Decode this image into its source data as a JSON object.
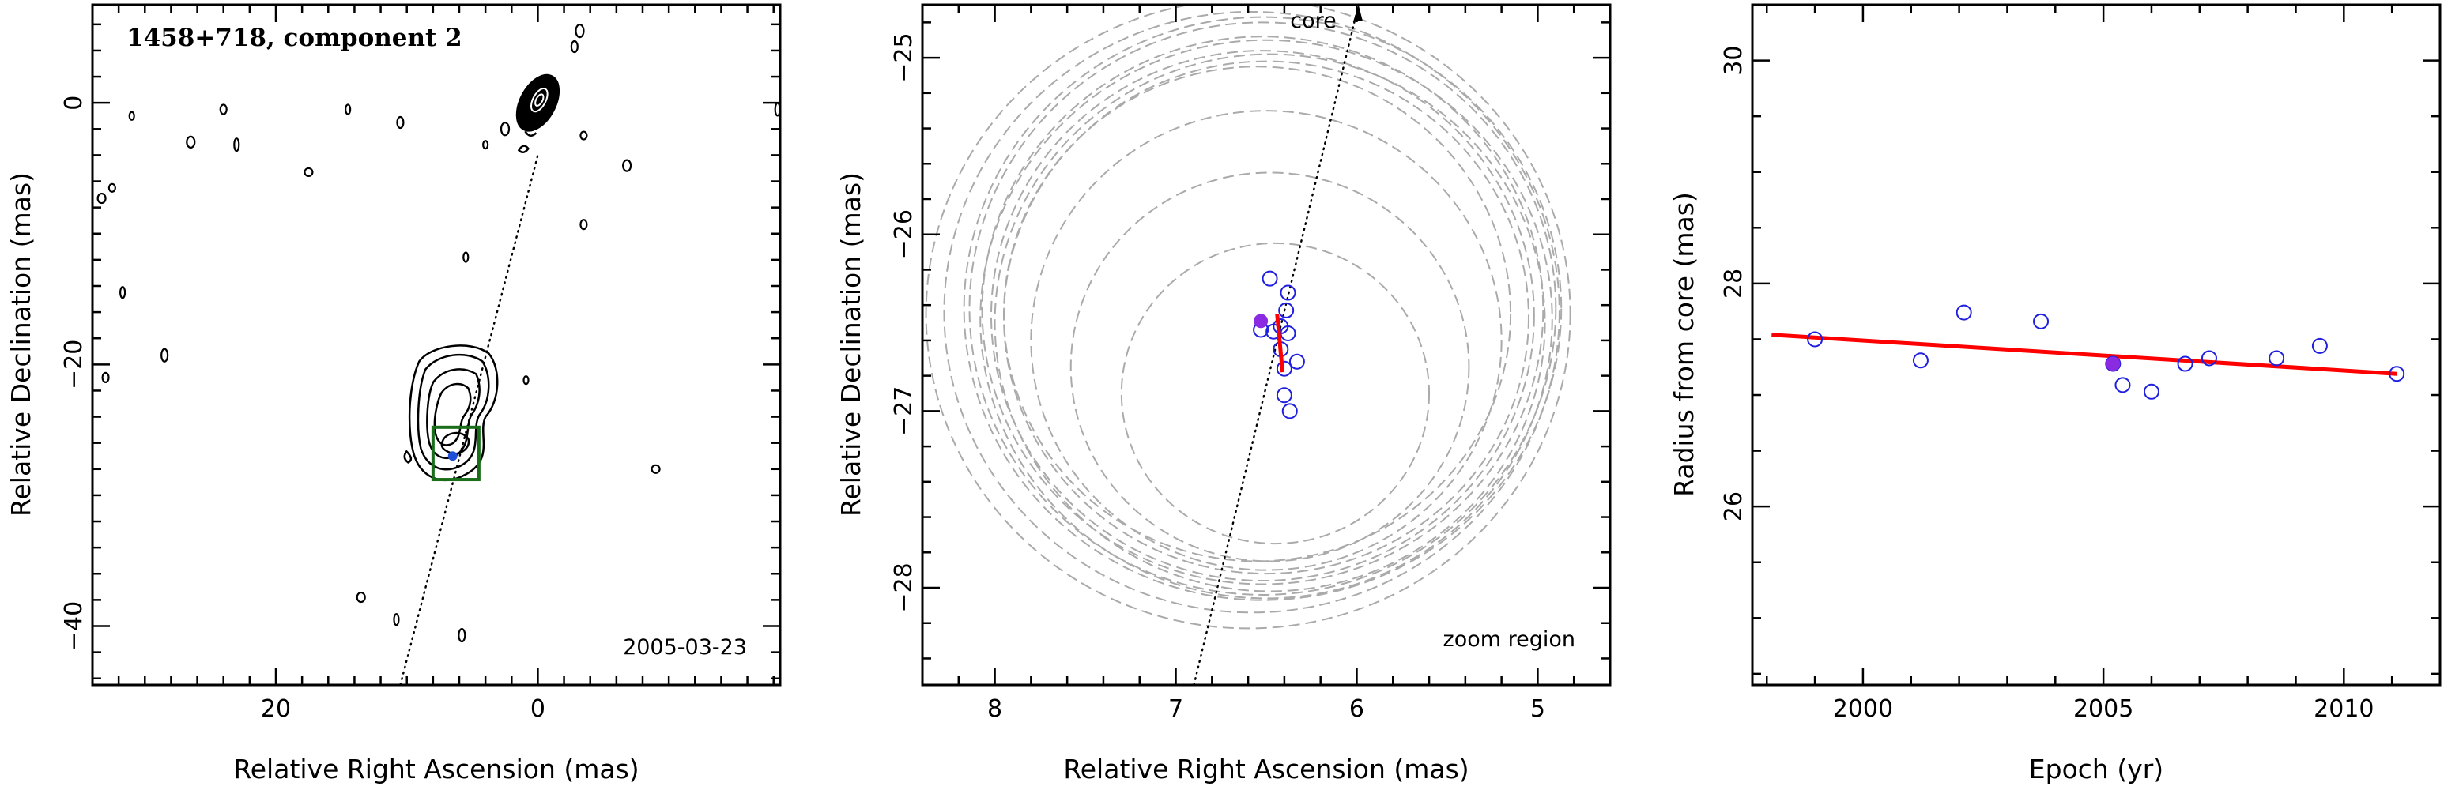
{
  "chart_data": [
    {
      "type": "contour-map",
      "title": "1458+718, component 2",
      "xlabel": "Relative Right Ascension (mas)",
      "ylabel": "Relative Declination (mas)",
      "xlim": [
        34,
        -18.5
      ],
      "ylim": [
        -44.5,
        7.5
      ],
      "xticks": [
        20,
        0
      ],
      "yticks": [
        0,
        -20,
        -40
      ],
      "date_label": "2005-03-23",
      "jet_line": {
        "from": [
          10.5,
          -44.5
        ],
        "to": [
          0,
          -4
        ]
      },
      "zoom_box": {
        "x": [
          4.5,
          8.0
        ],
        "y": [
          -24.8,
          -28.8
        ]
      },
      "component": {
        "ra": 6.5,
        "dec": -27.0
      },
      "core": {
        "ra": 0,
        "dec": 0
      },
      "colors": {
        "contour": "#000000",
        "zoom_box": "#1a6e1a",
        "component": "#1f4fd6",
        "jet_line": "#000000"
      }
    },
    {
      "type": "scatter",
      "xlabel": "Relative Right Ascension (mas)",
      "ylabel": "Relative Declination (mas)",
      "xlim": [
        8.4,
        4.6
      ],
      "ylim": [
        -28.55,
        -24.7
      ],
      "xticks": [
        8,
        7,
        6,
        5
      ],
      "yticks": [
        -25,
        -26,
        -27,
        -28
      ],
      "core_label": "core",
      "zoom_label": "zoom region",
      "jet_line": {
        "from": [
          6.9,
          -28.55
        ],
        "to": [
          5.99,
          -24.7
        ]
      },
      "points": [
        {
          "x": 6.48,
          "y": -26.25
        },
        {
          "x": 6.38,
          "y": -26.33
        },
        {
          "x": 6.39,
          "y": -26.43
        },
        {
          "x": 6.42,
          "y": -26.52
        },
        {
          "x": 6.46,
          "y": -26.55
        },
        {
          "x": 6.53,
          "y": -26.54
        },
        {
          "x": 6.38,
          "y": -26.56
        },
        {
          "x": 6.42,
          "y": -26.65
        },
        {
          "x": 6.33,
          "y": -26.72
        },
        {
          "x": 6.4,
          "y": -26.76
        },
        {
          "x": 6.4,
          "y": -26.91
        },
        {
          "x": 6.37,
          "y": -27.0
        }
      ],
      "highlight_point": {
        "x": 6.53,
        "y": -26.49
      },
      "error_bar": {
        "x1": 6.44,
        "y1": -26.45,
        "x2": 6.41,
        "y2": -26.78
      },
      "circles": [
        {
          "x": 6.55,
          "y": -26.45,
          "r": 1.4
        },
        {
          "x": 6.5,
          "y": -26.47,
          "r": 1.45
        },
        {
          "x": 6.52,
          "y": -26.46,
          "r": 1.5
        },
        {
          "x": 6.48,
          "y": -26.5,
          "r": 1.52
        },
        {
          "x": 6.52,
          "y": -26.43,
          "r": 1.55
        },
        {
          "x": 6.5,
          "y": -26.48,
          "r": 1.58
        },
        {
          "x": 6.52,
          "y": -26.42,
          "r": 1.62
        },
        {
          "x": 6.52,
          "y": -26.42,
          "r": 1.65
        },
        {
          "x": 6.58,
          "y": -26.44,
          "r": 1.7
        },
        {
          "x": 6.6,
          "y": -26.45,
          "r": 1.78
        },
        {
          "x": 6.5,
          "y": -26.6,
          "r": 1.3
        },
        {
          "x": 6.48,
          "y": -26.75,
          "r": 1.1
        },
        {
          "x": 6.45,
          "y": -26.9,
          "r": 0.85
        }
      ],
      "colors": {
        "points": "#1f1fe0",
        "highlight": "#8a2be2",
        "error_bar": "#ff0000",
        "circles": "#aaaaaa"
      }
    },
    {
      "type": "scatter",
      "xlabel": "Epoch (yr)",
      "ylabel": "Radius from core (mas)",
      "xlim": [
        1997.7,
        2012.0
      ],
      "ylim": [
        24.4,
        30.5
      ],
      "xticks": [
        2000,
        2005,
        2010
      ],
      "yticks": [
        26,
        28,
        30
      ],
      "points": [
        {
          "x": 1999.0,
          "y": 27.5
        },
        {
          "x": 2001.2,
          "y": 27.31
        },
        {
          "x": 2002.1,
          "y": 27.74
        },
        {
          "x": 2003.7,
          "y": 27.66
        },
        {
          "x": 2005.2,
          "y": 27.28
        },
        {
          "x": 2005.4,
          "y": 27.09
        },
        {
          "x": 2006.0,
          "y": 27.03
        },
        {
          "x": 2006.7,
          "y": 27.28
        },
        {
          "x": 2007.2,
          "y": 27.33
        },
        {
          "x": 2008.6,
          "y": 27.33
        },
        {
          "x": 2009.5,
          "y": 27.44
        },
        {
          "x": 2011.1,
          "y": 27.19
        }
      ],
      "highlight_point": {
        "x": 2005.2,
        "y": 27.28
      },
      "fit_line": {
        "x": [
          1998.1,
          2011.1
        ],
        "y": [
          27.54,
          27.19
        ]
      },
      "colors": {
        "points": "#1f1fe0",
        "highlight": "#8a2be2",
        "fit_line": "#ff0000"
      }
    }
  ]
}
